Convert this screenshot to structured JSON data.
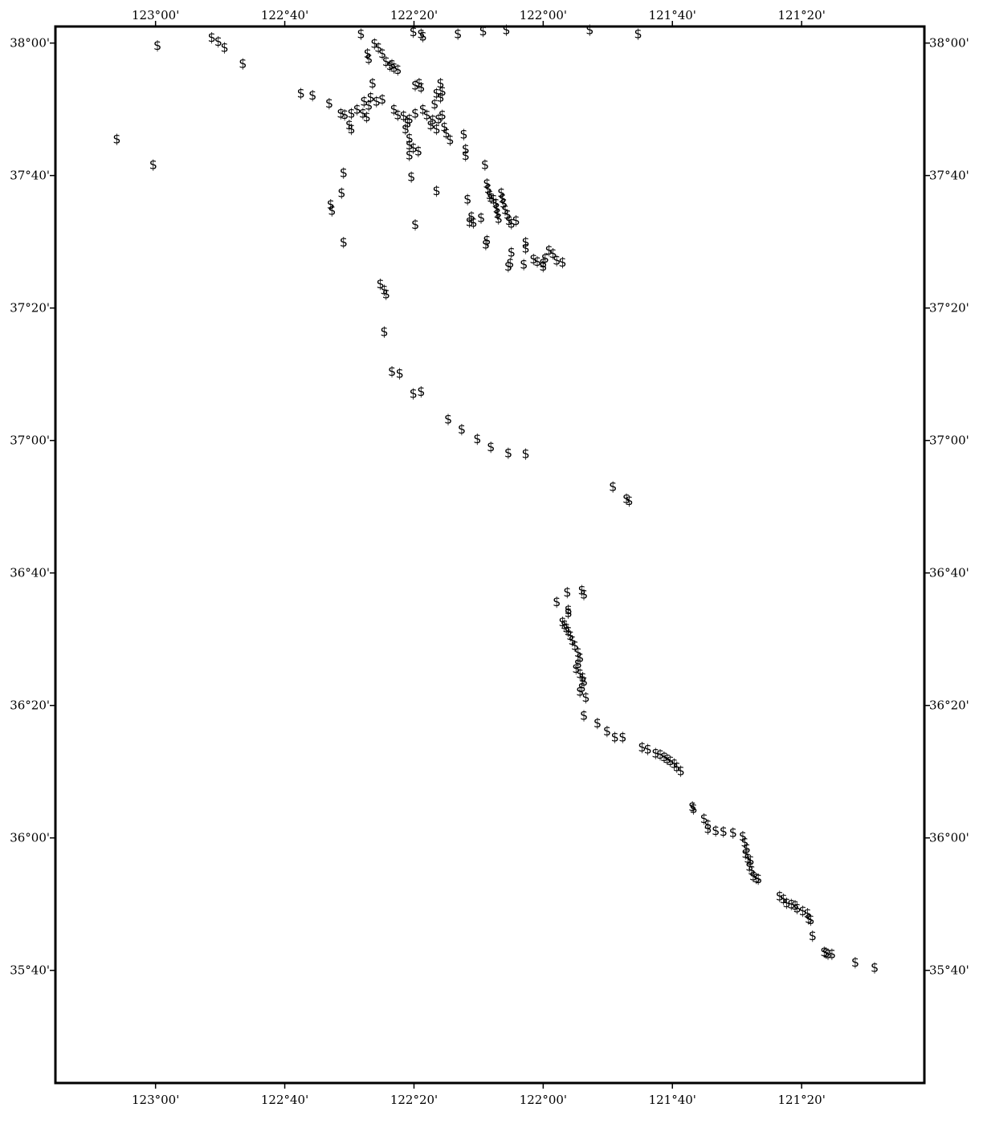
{
  "chart_data": {
    "type": "scatter",
    "title": "",
    "marker_symbol": "$",
    "marker_color": "#000000",
    "frame_color": "#000000",
    "grid": false,
    "xlim": [
      -123.2583,
      -121.0167
    ],
    "ylim": [
      35.3833,
      38.0417
    ],
    "x_ticks": [
      {
        "value": -123.0,
        "label": "123°00'"
      },
      {
        "value": -122.6667,
        "label": "122°40'"
      },
      {
        "value": -122.3333,
        "label": "122°20'"
      },
      {
        "value": -122.0,
        "label": "122°00'"
      },
      {
        "value": -121.6667,
        "label": "121°40'"
      },
      {
        "value": -121.3333,
        "label": "121°20'"
      }
    ],
    "y_ticks": [
      {
        "value": 38.0,
        "label": "38°00'"
      },
      {
        "value": 37.6667,
        "label": "37°40'"
      },
      {
        "value": 37.3333,
        "label": "37°20'"
      },
      {
        "value": 37.0,
        "label": "37°00'"
      },
      {
        "value": 36.6667,
        "label": "36°40'"
      },
      {
        "value": 36.3333,
        "label": "36°20'"
      },
      {
        "value": 36.0,
        "label": "36°00'"
      },
      {
        "value": 35.6667,
        "label": "35°40'"
      }
    ],
    "points": [
      [
        -123.1,
        37.76
      ],
      [
        -123.006,
        37.695
      ],
      [
        -122.995,
        37.995
      ],
      [
        -122.855,
        38.015
      ],
      [
        -122.838,
        38.005
      ],
      [
        -122.822,
        37.99
      ],
      [
        -122.775,
        37.95
      ],
      [
        -122.625,
        37.875
      ],
      [
        -122.595,
        37.87
      ],
      [
        -122.552,
        37.85
      ],
      [
        -122.522,
        37.825
      ],
      [
        -122.512,
        37.822
      ],
      [
        -122.495,
        37.825
      ],
      [
        -122.5,
        37.795
      ],
      [
        -122.495,
        37.785
      ],
      [
        -122.48,
        37.835
      ],
      [
        -122.465,
        37.825
      ],
      [
        -122.455,
        37.815
      ],
      [
        -122.45,
        37.845
      ],
      [
        -122.462,
        37.855
      ],
      [
        -122.445,
        37.865
      ],
      [
        -122.43,
        37.855
      ],
      [
        -122.415,
        37.86
      ],
      [
        -122.44,
        37.9
      ],
      [
        -122.45,
        37.962
      ],
      [
        -122.453,
        37.975
      ],
      [
        -122.435,
        38.0
      ],
      [
        -122.425,
        37.99
      ],
      [
        -122.415,
        37.975
      ],
      [
        -122.405,
        37.955
      ],
      [
        -122.395,
        37.945
      ],
      [
        -122.39,
        37.948
      ],
      [
        -122.385,
        37.94
      ],
      [
        -122.375,
        37.935
      ],
      [
        -122.47,
        38.025
      ],
      [
        -122.385,
        37.835
      ],
      [
        -122.375,
        37.82
      ],
      [
        -122.36,
        37.818
      ],
      [
        -122.345,
        37.81
      ],
      [
        -122.35,
        37.8
      ],
      [
        -122.355,
        37.785
      ],
      [
        -122.345,
        37.762
      ],
      [
        -122.345,
        37.745
      ],
      [
        -122.335,
        37.738
      ],
      [
        -122.345,
        37.72
      ],
      [
        -122.322,
        37.73
      ],
      [
        -122.34,
        37.665
      ],
      [
        -122.33,
        37.895
      ],
      [
        -122.32,
        37.9
      ],
      [
        -122.315,
        37.89
      ],
      [
        -122.33,
        37.825
      ],
      [
        -122.31,
        37.835
      ],
      [
        -122.3,
        37.82
      ],
      [
        -122.29,
        37.795
      ],
      [
        -122.285,
        37.808
      ],
      [
        -122.275,
        37.785
      ],
      [
        -122.27,
        37.81
      ],
      [
        -122.265,
        37.9
      ],
      [
        -122.275,
        37.875
      ],
      [
        -122.28,
        37.848
      ],
      [
        -122.26,
        37.82
      ],
      [
        -122.255,
        37.79
      ],
      [
        -122.25,
        37.775
      ],
      [
        -122.24,
        37.758
      ],
      [
        -122.26,
        37.88
      ],
      [
        -122.265,
        37.865
      ],
      [
        -122.22,
        38.025
      ],
      [
        -122.315,
        38.025
      ],
      [
        -122.31,
        38.018
      ],
      [
        -122.335,
        38.03
      ],
      [
        -122.155,
        38.032
      ],
      [
        -122.095,
        38.035
      ],
      [
        -121.88,
        38.035
      ],
      [
        -121.755,
        38.025
      ],
      [
        -122.515,
        37.675
      ],
      [
        -122.52,
        37.625
      ],
      [
        -122.548,
        37.595
      ],
      [
        -122.545,
        37.58
      ],
      [
        -122.515,
        37.5
      ],
      [
        -122.33,
        37.545
      ],
      [
        -122.275,
        37.63
      ],
      [
        -122.205,
        37.772
      ],
      [
        -122.2,
        37.735
      ],
      [
        -122.2,
        37.718
      ],
      [
        -122.15,
        37.695
      ],
      [
        -122.195,
        37.608
      ],
      [
        -122.185,
        37.565
      ],
      [
        -122.19,
        37.552
      ],
      [
        -122.18,
        37.55
      ],
      [
        -122.16,
        37.562
      ],
      [
        -122.145,
        37.505
      ],
      [
        -122.148,
        37.495
      ],
      [
        -122.145,
        37.648
      ],
      [
        -122.142,
        37.635
      ],
      [
        -122.138,
        37.62
      ],
      [
        -122.135,
        37.612
      ],
      [
        -122.128,
        37.608
      ],
      [
        -122.122,
        37.598
      ],
      [
        -122.12,
        37.585
      ],
      [
        -122.118,
        37.572
      ],
      [
        -122.115,
        37.56
      ],
      [
        -122.108,
        37.625
      ],
      [
        -122.105,
        37.61
      ],
      [
        -122.102,
        37.598
      ],
      [
        -122.098,
        37.582
      ],
      [
        -122.092,
        37.57
      ],
      [
        -122.088,
        37.555
      ],
      [
        -122.082,
        37.548
      ],
      [
        -122.07,
        37.555
      ],
      [
        -122.085,
        37.448
      ],
      [
        -122.09,
        37.44
      ],
      [
        -122.082,
        37.475
      ],
      [
        -122.05,
        37.445
      ],
      [
        -122.045,
        37.5
      ],
      [
        -122.045,
        37.485
      ],
      [
        -122.025,
        37.458
      ],
      [
        -122.015,
        37.452
      ],
      [
        -122.0,
        37.448
      ],
      [
        -121.995,
        37.46
      ],
      [
        -122.0,
        37.44
      ],
      [
        -121.985,
        37.48
      ],
      [
        -121.975,
        37.472
      ],
      [
        -121.965,
        37.455
      ],
      [
        -121.95,
        37.45
      ],
      [
        -122.42,
        37.395
      ],
      [
        -122.41,
        37.38
      ],
      [
        -122.405,
        37.37
      ],
      [
        -122.41,
        37.275
      ],
      [
        -122.39,
        37.175
      ],
      [
        -122.37,
        37.17
      ],
      [
        -122.335,
        37.12
      ],
      [
        -122.315,
        37.125
      ],
      [
        -122.245,
        37.055
      ],
      [
        -122.21,
        37.03
      ],
      [
        -122.17,
        37.005
      ],
      [
        -122.135,
        36.985
      ],
      [
        -122.09,
        36.97
      ],
      [
        -122.045,
        36.968
      ],
      [
        -121.82,
        36.885
      ],
      [
        -121.785,
        36.855
      ],
      [
        -121.778,
        36.85
      ],
      [
        -121.965,
        36.595
      ],
      [
        -121.938,
        36.62
      ],
      [
        -121.9,
        36.625
      ],
      [
        -121.895,
        36.615
      ],
      [
        -121.935,
        36.575
      ],
      [
        -121.935,
        36.568
      ],
      [
        -121.95,
        36.545
      ],
      [
        -121.945,
        36.538
      ],
      [
        -121.94,
        36.53
      ],
      [
        -121.935,
        36.522
      ],
      [
        -121.93,
        36.51
      ],
      [
        -121.925,
        36.498
      ],
      [
        -121.918,
        36.485
      ],
      [
        -121.91,
        36.468
      ],
      [
        -121.905,
        36.455
      ],
      [
        -121.91,
        36.44
      ],
      [
        -121.915,
        36.428
      ],
      [
        -121.905,
        36.415
      ],
      [
        -121.898,
        36.405
      ],
      [
        -121.895,
        36.395
      ],
      [
        -121.9,
        36.38
      ],
      [
        -121.905,
        36.37
      ],
      [
        -121.89,
        36.355
      ],
      [
        -121.895,
        36.31
      ],
      [
        -121.86,
        36.29
      ],
      [
        -121.835,
        36.27
      ],
      [
        -121.815,
        36.255
      ],
      [
        -121.795,
        36.255
      ],
      [
        -121.745,
        36.23
      ],
      [
        -121.73,
        36.225
      ],
      [
        -121.71,
        36.215
      ],
      [
        -121.698,
        36.212
      ],
      [
        -121.688,
        36.205
      ],
      [
        -121.68,
        36.2
      ],
      [
        -121.672,
        36.195
      ],
      [
        -121.662,
        36.188
      ],
      [
        -121.655,
        36.18
      ],
      [
        -121.645,
        36.17
      ],
      [
        -121.615,
        36.08
      ],
      [
        -121.612,
        36.075
      ],
      [
        -121.585,
        36.05
      ],
      [
        -121.575,
        36.035
      ],
      [
        -121.575,
        36.025
      ],
      [
        -121.555,
        36.02
      ],
      [
        -121.535,
        36.018
      ],
      [
        -121.51,
        36.015
      ],
      [
        -121.485,
        36.005
      ],
      [
        -121.48,
        35.99
      ],
      [
        -121.475,
        35.975
      ],
      [
        -121.478,
        35.962
      ],
      [
        -121.472,
        35.95
      ],
      [
        -121.465,
        35.945
      ],
      [
        -121.468,
        35.93
      ],
      [
        -121.462,
        35.92
      ],
      [
        -121.458,
        35.905
      ],
      [
        -121.45,
        35.9
      ],
      [
        -121.445,
        35.898
      ],
      [
        -121.39,
        35.855
      ],
      [
        -121.38,
        35.848
      ],
      [
        -121.372,
        35.838
      ],
      [
        -121.36,
        35.835
      ],
      [
        -121.35,
        35.832
      ],
      [
        -121.345,
        35.825
      ],
      [
        -121.33,
        35.818
      ],
      [
        -121.318,
        35.812
      ],
      [
        -121.315,
        35.798
      ],
      [
        -121.31,
        35.795
      ],
      [
        -121.305,
        35.755
      ],
      [
        -121.275,
        35.715
      ],
      [
        -121.27,
        35.713
      ],
      [
        -121.265,
        35.71
      ],
      [
        -121.255,
        35.71
      ],
      [
        -121.195,
        35.688
      ],
      [
        -121.145,
        35.675
      ]
    ]
  }
}
